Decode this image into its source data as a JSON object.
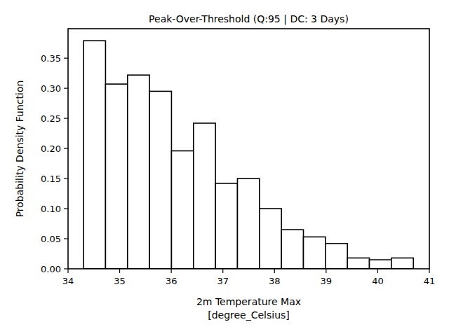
{
  "chart_data": {
    "type": "histogram",
    "title": "Peak-Over-Threshold (Q:95 | DC: 3 Days)",
    "x_label": "2m Temperature Max\n[degree_Celsius]",
    "y_label": "Probability Density Function",
    "bins": [
      34.3,
      34.726,
      35.152,
      35.578,
      36.004,
      36.43,
      36.856,
      37.282,
      37.708,
      38.134,
      38.56,
      38.986,
      39.412,
      39.838,
      40.264,
      40.69
    ],
    "values": [
      0.379,
      0.307,
      0.322,
      0.295,
      0.196,
      0.242,
      0.142,
      0.15,
      0.1,
      0.065,
      0.053,
      0.042,
      0.018,
      0.015,
      0.018
    ],
    "color": "#ffffff",
    "xlim": [
      34,
      41
    ],
    "xticks": [
      34,
      35,
      36,
      37,
      38,
      39,
      40,
      41
    ],
    "ylim": [
      0,
      0.399
    ],
    "yticks": [
      {
        "value": 0,
        "label": "0.00"
      },
      {
        "value": 0.05,
        "label": "0.05"
      },
      {
        "value": 0.1,
        "label": "0.10"
      },
      {
        "value": 0.15,
        "label": "0.15"
      },
      {
        "value": 0.2,
        "label": "0.20"
      },
      {
        "value": 0.25,
        "label": "0.25"
      },
      {
        "value": 0.3,
        "label": "0.30"
      },
      {
        "value": 0.35,
        "label": "0.35"
      }
    ],
    "grid": false
  }
}
